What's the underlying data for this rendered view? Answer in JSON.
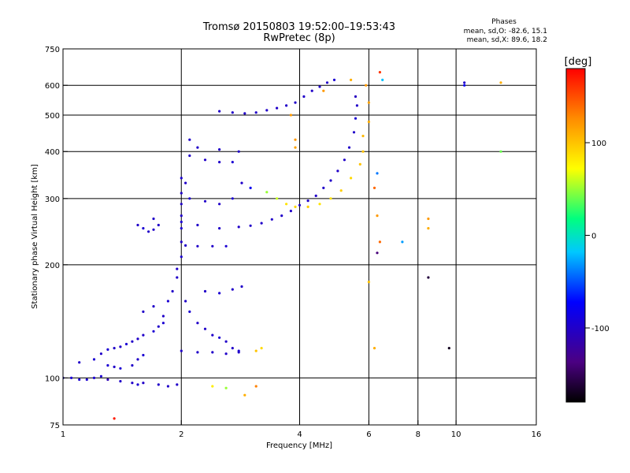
{
  "header": {
    "title_line1": "Tromsø 20150803 19:52:00–19:53:43",
    "title_line2": "RwPretec (8p)",
    "stats_heading": "Phases",
    "stats_o": "mean, sd,O: -82.6, 15.1",
    "stats_x": "mean, sd,X:  89.6, 18.2"
  },
  "chart_data": {
    "type": "scatter",
    "xlabel": "Frequency [MHz]",
    "ylabel": "Stationary phase Virtual Height [km]",
    "x_scale": "log",
    "y_scale": "log",
    "xlim": [
      1,
      16
    ],
    "ylim": [
      75,
      750
    ],
    "x_ticks": [
      1,
      2,
      4,
      6,
      8,
      10,
      16
    ],
    "y_ticks": [
      75,
      100,
      200,
      300,
      400,
      500,
      600,
      750
    ],
    "x_grid": [
      2,
      4,
      6,
      8,
      10
    ],
    "y_grid": [
      100,
      200,
      300,
      400,
      500,
      600
    ],
    "grid": true,
    "colorbar": {
      "label": "[deg]",
      "range": [
        -180,
        180
      ],
      "ticks": [
        -100,
        0,
        100
      ]
    },
    "series": [
      {
        "values": [
          [
            1.0,
            100,
            -95
          ],
          [
            1.05,
            100,
            -95
          ],
          [
            1.1,
            99,
            -95
          ],
          [
            1.15,
            99,
            -95
          ],
          [
            1.2,
            100,
            -95
          ],
          [
            1.25,
            101,
            -95
          ],
          [
            1.1,
            110,
            -100
          ],
          [
            1.2,
            112,
            -95
          ],
          [
            1.25,
            116,
            -100
          ],
          [
            1.3,
            119,
            -95
          ],
          [
            1.35,
            120,
            -100
          ],
          [
            1.4,
            121,
            -100
          ],
          [
            1.45,
            123,
            -95
          ],
          [
            1.5,
            125,
            -100
          ],
          [
            1.55,
            127,
            -100
          ],
          [
            1.6,
            130,
            -100
          ],
          [
            1.7,
            133,
            -95
          ],
          [
            1.75,
            137,
            -100
          ],
          [
            1.8,
            140,
            -95
          ],
          [
            1.3,
            108,
            -95
          ],
          [
            1.35,
            107,
            -100
          ],
          [
            1.4,
            106,
            -95
          ],
          [
            1.5,
            108,
            -100
          ],
          [
            1.55,
            112,
            -100
          ],
          [
            1.6,
            115,
            -95
          ],
          [
            1.3,
            99,
            -110
          ],
          [
            1.4,
            98,
            -100
          ],
          [
            1.5,
            97,
            -100
          ],
          [
            1.55,
            96,
            -95
          ],
          [
            1.6,
            97,
            -100
          ],
          [
            1.75,
            96,
            -100
          ],
          [
            1.85,
            95,
            -100
          ],
          [
            1.95,
            96,
            -100
          ],
          [
            1.6,
            150,
            -100
          ],
          [
            1.7,
            155,
            -100
          ],
          [
            1.8,
            146,
            -100
          ],
          [
            1.85,
            160,
            -95
          ],
          [
            1.9,
            170,
            -100
          ],
          [
            1.95,
            185,
            -100
          ],
          [
            1.95,
            195,
            -100
          ],
          [
            2.0,
            210,
            -95
          ],
          [
            2.0,
            230,
            -100
          ],
          [
            2.0,
            250,
            -95
          ],
          [
            2.0,
            270,
            -100
          ],
          [
            2.0,
            290,
            -100
          ],
          [
            2.0,
            310,
            -100
          ],
          [
            2.05,
            330,
            -100
          ],
          [
            2.0,
            340,
            -95
          ],
          [
            2.05,
            160,
            -100
          ],
          [
            2.1,
            150,
            -95
          ],
          [
            2.2,
            140,
            -100
          ],
          [
            2.3,
            135,
            -100
          ],
          [
            2.4,
            130,
            -100
          ],
          [
            2.5,
            128,
            -95
          ],
          [
            2.6,
            125,
            -100
          ],
          [
            2.7,
            120,
            -100
          ],
          [
            2.8,
            118,
            -95
          ],
          [
            2.0,
            118,
            -100
          ],
          [
            2.2,
            117,
            -100
          ],
          [
            2.4,
            117,
            -100
          ],
          [
            2.6,
            116,
            -100
          ],
          [
            2.8,
            117,
            -100
          ],
          [
            2.3,
            170,
            -100
          ],
          [
            2.5,
            168,
            -95
          ],
          [
            2.7,
            172,
            -100
          ],
          [
            2.85,
            175,
            -100
          ],
          [
            1.55,
            255,
            -100
          ],
          [
            1.6,
            250,
            -95
          ],
          [
            1.65,
            245,
            -100
          ],
          [
            1.7,
            248,
            -100
          ],
          [
            1.75,
            255,
            -100
          ],
          [
            1.7,
            265,
            -100
          ],
          [
            2.0,
            260,
            -95
          ],
          [
            2.2,
            255,
            -100
          ],
          [
            2.5,
            250,
            -100
          ],
          [
            2.8,
            252,
            -100
          ],
          [
            3.0,
            254,
            -100
          ],
          [
            3.2,
            258,
            -100
          ],
          [
            3.4,
            264,
            -100
          ],
          [
            3.6,
            270,
            -100
          ],
          [
            3.8,
            278,
            -100
          ],
          [
            4.0,
            288,
            -100
          ],
          [
            4.2,
            296,
            -100
          ],
          [
            4.4,
            305,
            -100
          ],
          [
            4.6,
            320,
            -100
          ],
          [
            4.8,
            335,
            -100
          ],
          [
            5.0,
            355,
            -100
          ],
          [
            5.2,
            380,
            -100
          ],
          [
            5.35,
            410,
            -100
          ],
          [
            5.5,
            450,
            -100
          ],
          [
            5.55,
            490,
            -95
          ],
          [
            5.6,
            530,
            -100
          ],
          [
            5.55,
            560,
            -105
          ],
          [
            2.05,
            225,
            -100
          ],
          [
            2.2,
            224,
            -100
          ],
          [
            2.4,
            224,
            -100
          ],
          [
            2.6,
            224,
            -95
          ],
          [
            2.1,
            300,
            -95
          ],
          [
            2.3,
            295,
            -100
          ],
          [
            2.5,
            290,
            -100
          ],
          [
            2.7,
            300,
            -95
          ],
          [
            2.85,
            330,
            -100
          ],
          [
            2.1,
            390,
            -100
          ],
          [
            2.3,
            380,
            -100
          ],
          [
            2.5,
            375,
            -100
          ],
          [
            2.7,
            375,
            -95
          ],
          [
            2.2,
            410,
            -100
          ],
          [
            2.5,
            405,
            -100
          ],
          [
            2.8,
            400,
            -100
          ],
          [
            2.1,
            430,
            -100
          ],
          [
            2.5,
            512,
            -100
          ],
          [
            2.7,
            508,
            -100
          ],
          [
            2.9,
            505,
            -100
          ],
          [
            3.1,
            508,
            -100
          ],
          [
            3.3,
            515,
            -100
          ],
          [
            3.5,
            522,
            -100
          ],
          [
            3.7,
            530,
            -100
          ],
          [
            3.9,
            540,
            -100
          ],
          [
            4.1,
            560,
            -100
          ],
          [
            4.3,
            580,
            -100
          ],
          [
            4.5,
            595,
            -100
          ],
          [
            4.7,
            610,
            -100
          ],
          [
            4.9,
            620,
            -95
          ],
          [
            3.0,
            320,
            -80
          ],
          [
            3.3,
            312,
            50
          ],
          [
            3.5,
            300,
            60
          ],
          [
            3.7,
            290,
            85
          ],
          [
            3.9,
            285,
            90
          ],
          [
            4.2,
            285,
            95
          ],
          [
            4.5,
            290,
            85
          ],
          [
            4.8,
            300,
            85
          ],
          [
            5.1,
            315,
            95
          ],
          [
            5.4,
            340,
            90
          ],
          [
            5.7,
            370,
            100
          ],
          [
            5.8,
            400,
            100
          ],
          [
            5.8,
            440,
            105
          ],
          [
            6.0,
            480,
            110
          ],
          [
            6.0,
            540,
            115
          ],
          [
            5.9,
            600,
            120
          ],
          [
            5.4,
            620,
            110
          ],
          [
            4.6,
            580,
            120
          ],
          [
            3.8,
            500,
            120
          ],
          [
            3.9,
            430,
            120
          ],
          [
            3.9,
            410,
            115
          ],
          [
            3.2,
            120,
            90
          ],
          [
            3.1,
            118,
            100
          ],
          [
            2.4,
            95,
            80
          ],
          [
            2.6,
            94,
            50
          ],
          [
            3.1,
            95,
            130
          ],
          [
            2.9,
            90,
            110
          ],
          [
            1.35,
            78,
            170
          ],
          [
            6.0,
            180,
            100
          ],
          [
            6.4,
            650,
            160
          ],
          [
            6.5,
            620,
            -20
          ],
          [
            6.3,
            350,
            -40
          ],
          [
            6.2,
            320,
            140
          ],
          [
            6.3,
            270,
            120
          ],
          [
            6.4,
            230,
            140
          ],
          [
            6.3,
            215,
            -140
          ],
          [
            7.3,
            230,
            -30
          ],
          [
            8.5,
            265,
            120
          ],
          [
            8.5,
            250,
            110
          ],
          [
            8.5,
            185,
            -160
          ],
          [
            9.6,
            120,
            -170
          ],
          [
            10.5,
            610,
            -100
          ],
          [
            10.5,
            600,
            -80
          ],
          [
            13.0,
            610,
            110
          ],
          [
            13.0,
            400,
            40
          ],
          [
            6.2,
            120,
            110
          ]
        ]
      }
    ]
  }
}
